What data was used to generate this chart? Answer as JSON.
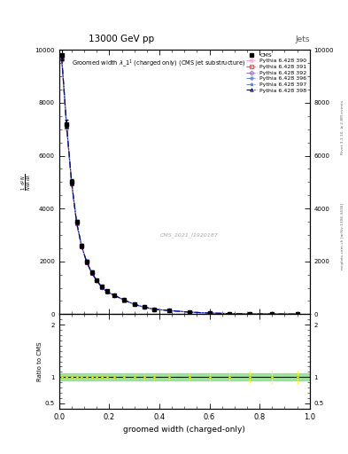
{
  "title_top": "13000 GeV pp",
  "title_right": "Jets",
  "plot_title": "Groomed width λ_1¹  (charged only) (CMS jet substructure)",
  "xlabel": "groomed width (charged-only)",
  "ratio_ylabel": "Ratio to CMS",
  "watermark": "CMS_2021_I1920187",
  "right_label_top": "Rivet 3.1.10, ≥ 2.8M events",
  "right_label_bot": "mcplots.cern.ch [arXiv:1306.3436]",
  "x_bins": [
    0.0,
    0.02,
    0.04,
    0.06,
    0.08,
    0.1,
    0.12,
    0.14,
    0.16,
    0.18,
    0.2,
    0.24,
    0.28,
    0.32,
    0.36,
    0.4,
    0.48,
    0.56,
    0.64,
    0.72,
    0.8,
    0.9,
    1.0
  ],
  "cms_values": [
    9800,
    7200,
    5000,
    3500,
    2600,
    2000,
    1600,
    1300,
    1050,
    870,
    730,
    540,
    380,
    270,
    190,
    140,
    80,
    45,
    25,
    14,
    8,
    4
  ],
  "cms_errors": [
    200,
    150,
    100,
    80,
    60,
    50,
    40,
    35,
    30,
    25,
    22,
    18,
    14,
    10,
    8,
    6,
    4,
    3,
    2,
    1.5,
    1,
    0.5
  ],
  "pythia_390": [
    9600,
    7000,
    4900,
    3400,
    2550,
    1960,
    1560,
    1270,
    1020,
    850,
    710,
    530,
    370,
    265,
    185,
    138,
    78,
    43,
    24,
    13,
    7.5,
    3.8
  ],
  "pythia_391": [
    9700,
    7100,
    4950,
    3450,
    2560,
    1970,
    1565,
    1275,
    1025,
    855,
    715,
    532,
    372,
    266,
    186,
    139,
    79,
    43.5,
    24.2,
    13.2,
    7.6,
    3.9
  ],
  "pythia_392": [
    9750,
    7150,
    4970,
    3460,
    2565,
    1975,
    1568,
    1278,
    1028,
    857,
    717,
    534,
    374,
    267,
    187,
    139.5,
    79.5,
    44,
    24.5,
    13.5,
    7.7,
    3.9
  ],
  "pythia_396": [
    9650,
    7050,
    4920,
    3420,
    2555,
    1965,
    1562,
    1272,
    1022,
    852,
    712,
    531,
    371,
    265,
    185.5,
    138.5,
    78.5,
    43.2,
    24.1,
    13.1,
    7.55,
    3.85
  ],
  "pythia_397": [
    9680,
    7080,
    4940,
    3440,
    2558,
    1968,
    1564,
    1274,
    1024,
    854,
    714,
    532,
    372,
    266,
    186,
    139,
    79,
    43.5,
    24.3,
    13.3,
    7.65,
    3.88
  ],
  "pythia_398": [
    9720,
    7120,
    4960,
    3455,
    2562,
    1972,
    1566,
    1276,
    1026,
    856,
    716,
    533,
    373,
    266.5,
    186.5,
    139.2,
    79.2,
    43.8,
    24.4,
    13.4,
    7.68,
    3.92
  ],
  "colors": {
    "cms": "#000000",
    "p390": "#ff99cc",
    "p391": "#ff4444",
    "p392": "#9370db",
    "p396": "#6688cc",
    "p397": "#4488ff",
    "p398": "#000080"
  },
  "markers": {
    "cms": "s",
    "p390": "o",
    "p391": "s",
    "p392": "D",
    "p396": "P",
    "p397": "*",
    "p398": "^"
  },
  "ylim_main": [
    0,
    10000
  ],
  "ylim_ratio": [
    0.4,
    2.2
  ],
  "xlim": [
    0,
    1
  ],
  "yticks_main": [
    0,
    2000,
    4000,
    6000,
    8000,
    10000
  ],
  "ytick_labels_main": [
    "0",
    "2000",
    "4000",
    "6000",
    "8000",
    "10000"
  ],
  "yticks_ratio": [
    0.5,
    1.0,
    2.0
  ],
  "ytick_labels_ratio": [
    "0.5",
    "1",
    "2"
  ]
}
